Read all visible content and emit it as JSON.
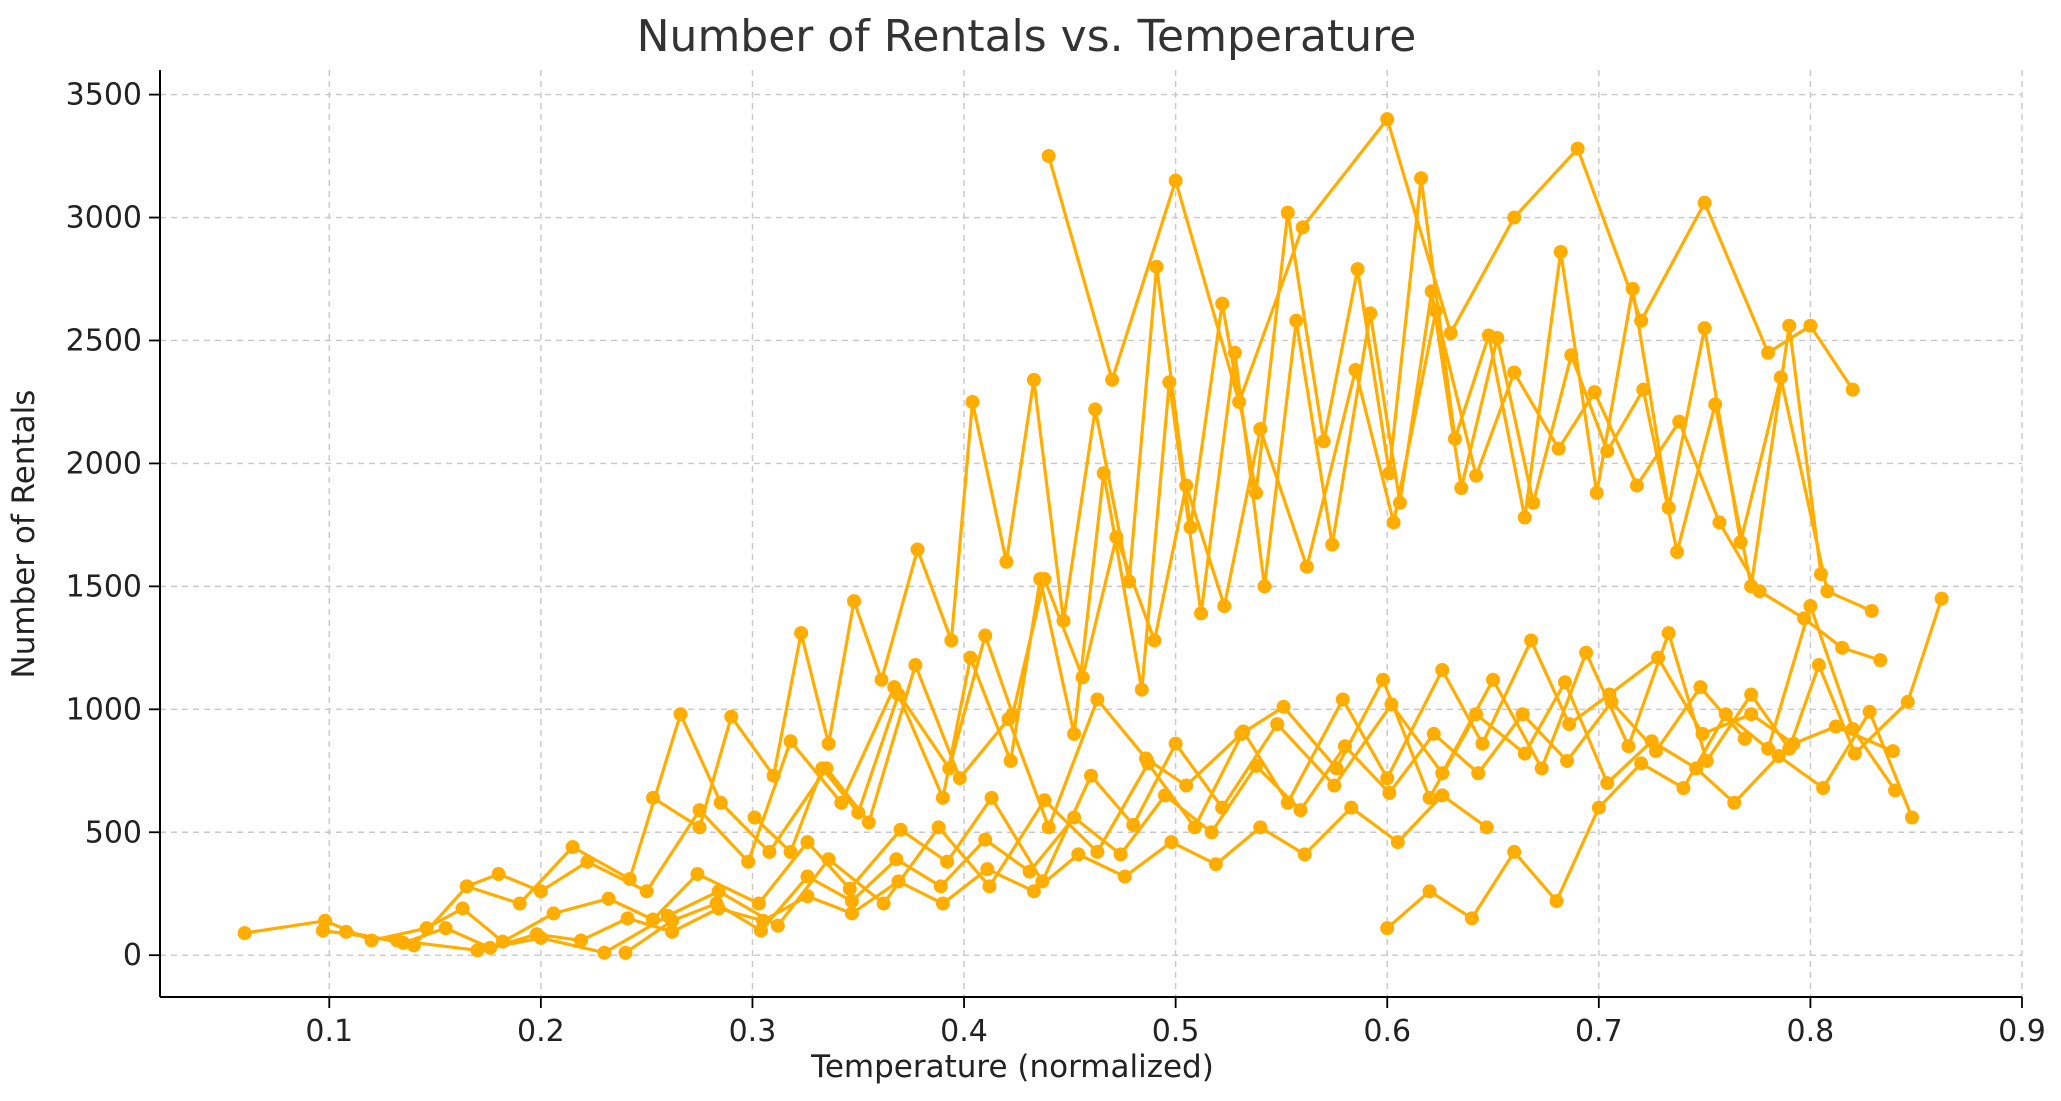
{
  "chart_data": {
    "type": "line",
    "title": "Number of Rentals vs. Temperature",
    "xlabel": "Temperature (normalized)",
    "ylabel": "Number of Rentals",
    "xlim": [
      0.02,
      0.9
    ],
    "ylim": [
      -170,
      3600
    ],
    "x_ticks": [
      0.1,
      0.2,
      0.3,
      0.4,
      0.5,
      0.6,
      0.7,
      0.8,
      0.9
    ],
    "x_tick_labels": [
      "0.1",
      "0.2",
      "0.3",
      "0.4",
      "0.5",
      "0.6",
      "0.7",
      "0.8",
      "0.9"
    ],
    "y_ticks": [
      0,
      500,
      1000,
      1500,
      2000,
      2500,
      3000,
      3500
    ],
    "y_tick_labels": [
      "0",
      "500",
      "1000",
      "1500",
      "2000",
      "2500",
      "3000",
      "3500"
    ],
    "grid": true,
    "series": [
      {
        "color": "#ffad00",
        "x": [
          0.06,
          0.098,
          0.12,
          0.146,
          0.163,
          0.182,
          0.206,
          0.232,
          0.253,
          0.274,
          0.303,
          0.326,
          0.346,
          0.37,
          0.392,
          0.413,
          0.437,
          0.46,
          0.48,
          0.5,
          0.522,
          0.548,
          0.575,
          0.602,
          0.626,
          0.65,
          0.673,
          0.694,
          0.714,
          0.733,
          0.751,
          0.772,
          0.79,
          0.804,
          0.821,
          0.846,
          0.862
        ],
        "y": [
          90,
          140,
          60,
          110,
          190,
          55,
          170,
          230,
          145,
          330,
          210,
          460,
          270,
          510,
          380,
          640,
          300,
          730,
          530,
          860,
          600,
          940,
          690,
          1020,
          740,
          1120,
          760,
          1230,
          850,
          1310,
          790,
          1060,
          840,
          1180,
          820,
          1030,
          1450
        ]
      },
      {
        "color": "#ffad00",
        "x": [
          0.097,
          0.132,
          0.17,
          0.2,
          0.23,
          0.26,
          0.284,
          0.312,
          0.336,
          0.362,
          0.388,
          0.412,
          0.438,
          0.463,
          0.487,
          0.509,
          0.532,
          0.553,
          0.579,
          0.6,
          0.626,
          0.645,
          0.668,
          0.686,
          0.705,
          0.728,
          0.749,
          0.772,
          0.792,
          0.812,
          0.839
        ],
        "y": [
          100,
          60,
          20,
          70,
          10,
          160,
          260,
          120,
          390,
          210,
          520,
          280,
          630,
          420,
          780,
          520,
          910,
          620,
          1040,
          720,
          1160,
          860,
          1280,
          940,
          1060,
          1210,
          900,
          980,
          860,
          930,
          830
        ]
      },
      {
        "color": "#ffad00",
        "x": [
          0.108,
          0.14,
          0.165,
          0.19,
          0.215,
          0.242,
          0.266,
          0.285,
          0.308,
          0.335,
          0.355,
          0.377,
          0.398,
          0.421,
          0.44,
          0.463,
          0.486,
          0.505,
          0.531,
          0.551,
          0.576,
          0.598,
          0.62,
          0.642,
          0.665,
          0.684,
          0.704,
          0.725,
          0.746,
          0.764,
          0.785,
          0.806,
          0.828,
          0.848
        ],
        "y": [
          95,
          40,
          280,
          210,
          440,
          310,
          980,
          620,
          420,
          760,
          540,
          1180,
          720,
          960,
          520,
          1040,
          800,
          690,
          900,
          1010,
          760,
          1120,
          640,
          980,
          820,
          1110,
          700,
          870,
          760,
          620,
          810,
          680,
          990,
          560
        ]
      },
      {
        "color": "#ffad00",
        "x": [
          0.165,
          0.18,
          0.2,
          0.222,
          0.25,
          0.275,
          0.298,
          0.318,
          0.342,
          0.367,
          0.393,
          0.41,
          0.423,
          0.438,
          0.456,
          0.472,
          0.49,
          0.505,
          0.523,
          0.54,
          0.562,
          0.585,
          0.603,
          0.623,
          0.642,
          0.66,
          0.681,
          0.698,
          0.718,
          0.738,
          0.757,
          0.776,
          0.797,
          0.815,
          0.833
        ],
        "y": [
          280,
          330,
          260,
          380,
          260,
          590,
          380,
          870,
          620,
          1090,
          760,
          1300,
          980,
          1530,
          1130,
          1700,
          1280,
          1910,
          1420,
          2140,
          1580,
          2380,
          1760,
          2620,
          1950,
          2370,
          2060,
          2290,
          1910,
          2170,
          1760,
          1480,
          1370,
          1250,
          1200
        ]
      },
      {
        "color": "#ffad00",
        "x": [
          0.253,
          0.275,
          0.29,
          0.31,
          0.323,
          0.336,
          0.348,
          0.361,
          0.378,
          0.394,
          0.404,
          0.42,
          0.433,
          0.447,
          0.462,
          0.478,
          0.491,
          0.507,
          0.522,
          0.538,
          0.553,
          0.57,
          0.586,
          0.601,
          0.616,
          0.632,
          0.648,
          0.665,
          0.682,
          0.699,
          0.716,
          0.733,
          0.75,
          0.767,
          0.786,
          0.808,
          0.829
        ],
        "y": [
          640,
          520,
          970,
          730,
          1310,
          860,
          1440,
          1120,
          1650,
          1280,
          2250,
          1600,
          2340,
          1360,
          2220,
          1520,
          2800,
          1740,
          2650,
          1880,
          3020,
          2090,
          2790,
          1960,
          3160,
          2100,
          2520,
          1780,
          2860,
          1880,
          2710,
          1820,
          2550,
          1680,
          2350,
          1480,
          1400
        ]
      },
      {
        "color": "#ffad00",
        "x": [
          0.301,
          0.318,
          0.333,
          0.35,
          0.369,
          0.39,
          0.403,
          0.422,
          0.436,
          0.452,
          0.466,
          0.484,
          0.497,
          0.512,
          0.528,
          0.542,
          0.557,
          0.574,
          0.592,
          0.606,
          0.621,
          0.635,
          0.652,
          0.669,
          0.687,
          0.704,
          0.721,
          0.737,
          0.755,
          0.772,
          0.79,
          0.805
        ],
        "y": [
          560,
          420,
          760,
          580,
          1060,
          640,
          1210,
          790,
          1530,
          900,
          1960,
          1080,
          2330,
          1390,
          2450,
          1500,
          2580,
          1670,
          2610,
          1840,
          2700,
          1900,
          2510,
          1840,
          2440,
          2050,
          2300,
          1640,
          2240,
          1500,
          2560,
          1550
        ]
      },
      {
        "color": "#ffad00",
        "x": [
          0.44,
          0.47,
          0.5,
          0.53,
          0.56,
          0.6,
          0.63,
          0.66,
          0.69,
          0.72,
          0.75,
          0.78,
          0.8,
          0.82
        ],
        "y": [
          3250,
          2340,
          3150,
          2250,
          2960,
          3400,
          2530,
          3000,
          3280,
          2580,
          3060,
          2450,
          2560,
          2300
        ]
      },
      {
        "color": "#ffad00",
        "x": [
          0.24,
          0.262,
          0.283,
          0.304,
          0.326,
          0.347,
          0.368,
          0.389,
          0.41,
          0.431,
          0.452,
          0.474,
          0.495,
          0.517,
          0.538,
          0.559,
          0.58,
          0.601,
          0.622,
          0.643,
          0.664,
          0.685,
          0.706,
          0.727,
          0.748,
          0.769
        ],
        "y": [
          10,
          140,
          210,
          100,
          320,
          220,
          390,
          280,
          470,
          340,
          560,
          410,
          650,
          500,
          770,
          590,
          850,
          660,
          900,
          740,
          980,
          790,
          1030,
          830,
          1090,
          880
        ]
      },
      {
        "color": "#ffad00",
        "x": [
          0.135,
          0.155,
          0.176,
          0.198,
          0.219,
          0.241,
          0.262,
          0.284,
          0.305,
          0.326,
          0.347,
          0.369,
          0.39,
          0.411,
          0.433,
          0.454,
          0.476,
          0.498,
          0.519,
          0.54,
          0.561,
          0.583,
          0.605,
          0.626,
          0.647
        ],
        "y": [
          50,
          110,
          30,
          85,
          60,
          150,
          95,
          190,
          140,
          240,
          170,
          300,
          210,
          350,
          260,
          410,
          320,
          460,
          370,
          520,
          410,
          600,
          460,
          650,
          520
        ]
      },
      {
        "color": "#ffad00",
        "x": [
          0.6,
          0.62,
          0.64,
          0.66,
          0.68,
          0.7,
          0.72,
          0.74,
          0.76,
          0.78,
          0.8,
          0.82,
          0.84
        ],
        "y": [
          110,
          260,
          150,
          420,
          220,
          600,
          780,
          680,
          980,
          840,
          1420,
          920,
          670
        ]
      }
    ]
  }
}
